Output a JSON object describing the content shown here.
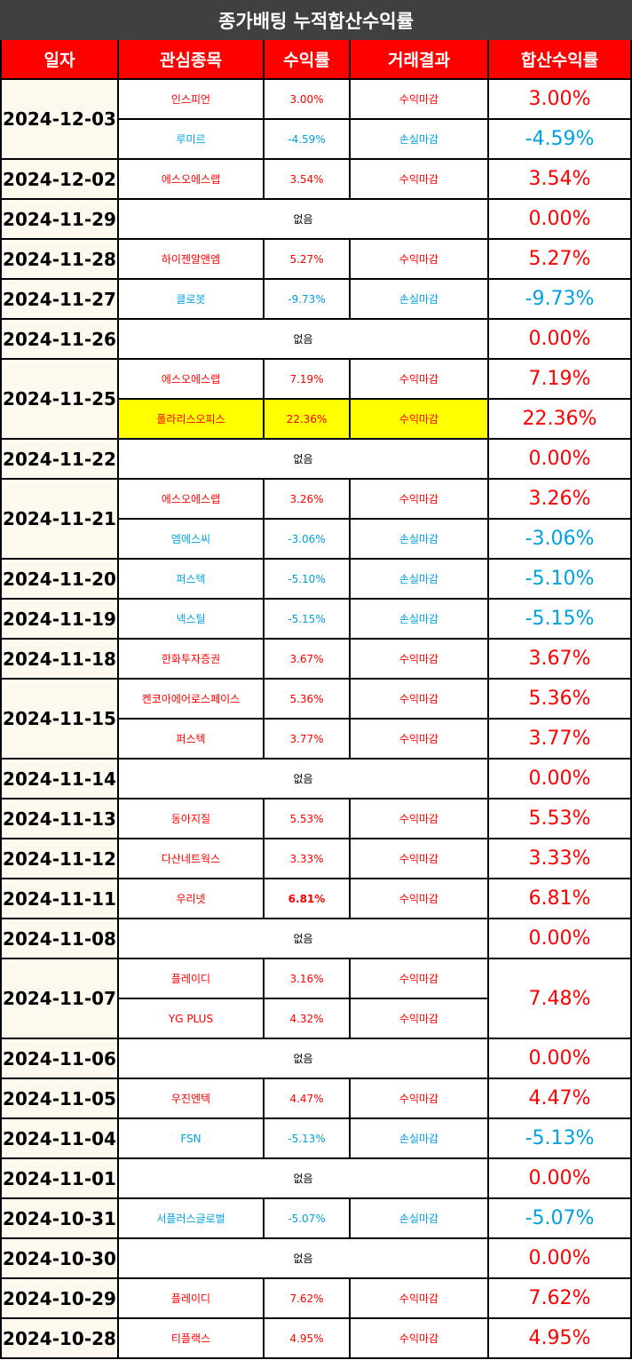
{
  "title": "종가배팅 누적합산수익률",
  "colors": {
    "header_bg": "#ff0000",
    "title_bg": "#404040",
    "profit": "#ff0000",
    "loss": "#00a0e0",
    "highlight": "#ffff00",
    "date_bg": "#fdf9ef"
  },
  "headers": [
    "일자",
    "관심종목",
    "수익률",
    "거래결과",
    "합산수익률"
  ],
  "none_label": "없음",
  "rows": [
    {
      "date": "2024-12-03",
      "trades": [
        {
          "stock": "인스피언",
          "rate": "3.00%",
          "result": "수익마감",
          "total": "3.00%",
          "tone": "profit"
        },
        {
          "stock": "루미르",
          "rate": "-4.59%",
          "result": "손실마감",
          "total": "-4.59%",
          "tone": "loss"
        }
      ]
    },
    {
      "date": "2024-12-02",
      "trades": [
        {
          "stock": "에스오에스랩",
          "rate": "3.54%",
          "result": "수익마감",
          "total": "3.54%",
          "tone": "profit"
        }
      ]
    },
    {
      "date": "2024-11-29",
      "none": true,
      "total": "0.00%"
    },
    {
      "date": "2024-11-28",
      "trades": [
        {
          "stock": "하이젠알앤엠",
          "rate": "5.27%",
          "result": "수익마감",
          "total": "5.27%",
          "tone": "profit"
        }
      ]
    },
    {
      "date": "2024-11-27",
      "trades": [
        {
          "stock": "클로봇",
          "rate": "-9.73%",
          "result": "손실마감",
          "total": "-9.73%",
          "tone": "loss"
        }
      ]
    },
    {
      "date": "2024-11-26",
      "none": true,
      "total": "0.00%"
    },
    {
      "date": "2024-11-25",
      "trades": [
        {
          "stock": "에스오에스랩",
          "rate": "7.19%",
          "result": "수익마감",
          "total": "7.19%",
          "tone": "profit"
        },
        {
          "stock": "폴라리스오피스",
          "rate": "22.36%",
          "result": "수익마감",
          "total": "22.36%",
          "tone": "profit",
          "highlight": true
        }
      ]
    },
    {
      "date": "2024-11-22",
      "none": true,
      "total": "0.00%"
    },
    {
      "date": "2024-11-21",
      "trades": [
        {
          "stock": "에스오에스랩",
          "rate": "3.26%",
          "result": "수익마감",
          "total": "3.26%",
          "tone": "profit"
        },
        {
          "stock": "엠에스씨",
          "rate": "-3.06%",
          "result": "손실마감",
          "total": "-3.06%",
          "tone": "loss"
        }
      ]
    },
    {
      "date": "2024-11-20",
      "trades": [
        {
          "stock": "퍼스텍",
          "rate": "-5.10%",
          "result": "손실마감",
          "total": "-5.10%",
          "tone": "loss"
        }
      ]
    },
    {
      "date": "2024-11-19",
      "trades": [
        {
          "stock": "넥스틸",
          "rate": "-5.15%",
          "result": "손실마감",
          "total": "-5.15%",
          "tone": "loss"
        }
      ]
    },
    {
      "date": "2024-11-18",
      "trades": [
        {
          "stock": "한화투자증권",
          "rate": "3.67%",
          "result": "수익마감",
          "total": "3.67%",
          "tone": "profit"
        }
      ]
    },
    {
      "date": "2024-11-15",
      "trades": [
        {
          "stock": "켄코아에어로스페이스",
          "rate": "5.36%",
          "result": "수익마감",
          "total": "5.36%",
          "tone": "profit"
        },
        {
          "stock": "퍼스텍",
          "rate": "3.77%",
          "result": "수익마감",
          "total": "3.77%",
          "tone": "profit"
        }
      ]
    },
    {
      "date": "2024-11-14",
      "none": true,
      "total": "0.00%"
    },
    {
      "date": "2024-11-13",
      "trades": [
        {
          "stock": "동아지질",
          "rate": "5.53%",
          "result": "수익마감",
          "total": "5.53%",
          "tone": "profit"
        }
      ]
    },
    {
      "date": "2024-11-12",
      "trades": [
        {
          "stock": "다산네트웍스",
          "rate": "3.33%",
          "result": "수익마감",
          "total": "3.33%",
          "tone": "profit"
        }
      ]
    },
    {
      "date": "2024-11-11",
      "trades": [
        {
          "stock": "우리넷",
          "rate": "6.81%",
          "result": "수익마감",
          "total": "6.81%",
          "tone": "profit",
          "bold_rate": true
        }
      ]
    },
    {
      "date": "2024-11-08",
      "none": true,
      "total": "0.00%"
    },
    {
      "date": "2024-11-07",
      "merged_total": "7.48%",
      "trades": [
        {
          "stock": "플레이디",
          "rate": "3.16%",
          "result": "수익마감",
          "tone": "profit"
        },
        {
          "stock": "YG PLUS",
          "rate": "4.32%",
          "result": "수익마감",
          "tone": "profit"
        }
      ]
    },
    {
      "date": "2024-11-06",
      "none": true,
      "total": "0.00%"
    },
    {
      "date": "2024-11-05",
      "trades": [
        {
          "stock": "우진엔텍",
          "rate": "4.47%",
          "result": "수익마감",
          "total": "4.47%",
          "tone": "profit"
        }
      ]
    },
    {
      "date": "2024-11-04",
      "trades": [
        {
          "stock": "FSN",
          "rate": "-5.13%",
          "result": "손실마감",
          "total": "-5.13%",
          "tone": "loss"
        }
      ]
    },
    {
      "date": "2024-11-01",
      "none": true,
      "total": "0.00%"
    },
    {
      "date": "2024-10-31",
      "trades": [
        {
          "stock": "서플러스글로벌",
          "rate": "-5.07%",
          "result": "손실마감",
          "total": "-5.07%",
          "tone": "loss"
        }
      ]
    },
    {
      "date": "2024-10-30",
      "none": true,
      "total": "0.00%"
    },
    {
      "date": "2024-10-29",
      "trades": [
        {
          "stock": "플레이디",
          "rate": "7.62%",
          "result": "수익마감",
          "total": "7.62%",
          "tone": "profit"
        }
      ]
    },
    {
      "date": "2024-10-28",
      "trades": [
        {
          "stock": "티플랙스",
          "rate": "4.95%",
          "result": "수익마감",
          "total": "4.95%",
          "tone": "profit"
        }
      ]
    }
  ]
}
